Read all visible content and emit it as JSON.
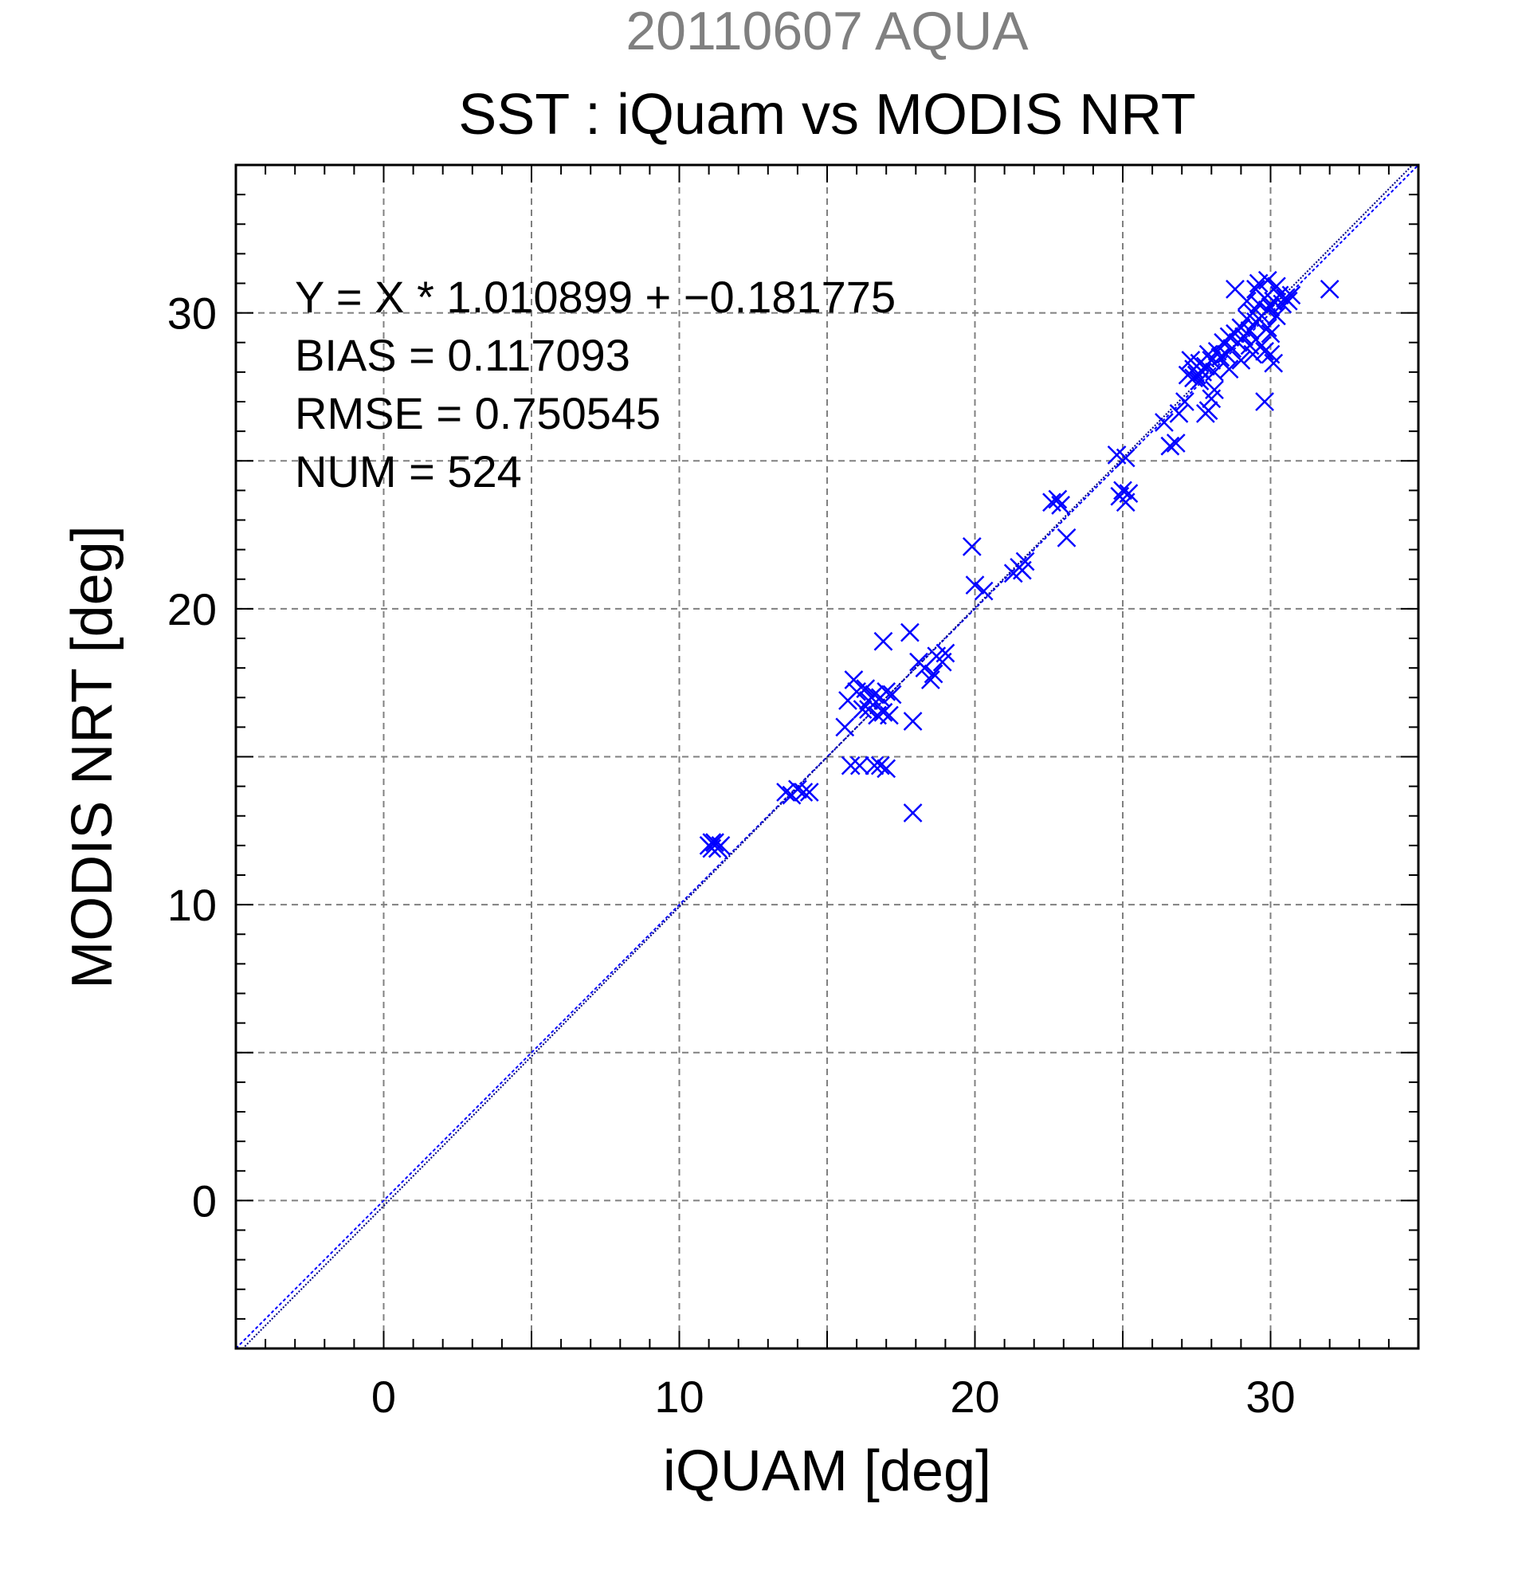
{
  "colors": {
    "marker": "#0000ff",
    "fit_line": "#000080",
    "identity_line": "#0000ff",
    "grid": "#808080",
    "supertitle": "#808080",
    "text": "#000000"
  },
  "chart_data": {
    "type": "scatter",
    "supertitle": "20110607 AQUA",
    "title": "SST : iQuam vs MODIS NRT",
    "xlabel": "iQUAM [deg]",
    "ylabel": "MODIS NRT [deg]",
    "xlim": [
      -5,
      35
    ],
    "ylim": [
      -5,
      35
    ],
    "xticks": [
      0,
      10,
      20,
      30
    ],
    "yticks": [
      0,
      10,
      20,
      30
    ],
    "grid": true,
    "marker": "x",
    "annotations": [
      "Y = X * 1.010899 + −0.181775",
      "BIAS = 0.117093",
      "RMSE = 0.750545",
      "NUM = 524"
    ],
    "fit": {
      "slope": 1.010899,
      "intercept": -0.181775
    },
    "reference_line": {
      "slope": 1,
      "intercept": 0
    },
    "series": [
      {
        "points": [
          [
            11.0,
            12.0
          ],
          [
            11.1,
            11.9
          ],
          [
            11.2,
            12.1
          ],
          [
            11.3,
            11.9
          ],
          [
            11.4,
            12.0
          ],
          [
            11.1,
            12.1
          ],
          [
            13.6,
            13.8
          ],
          [
            13.8,
            13.7
          ],
          [
            14.0,
            13.9
          ],
          [
            14.2,
            13.8
          ],
          [
            14.4,
            13.8
          ],
          [
            15.6,
            16.0
          ],
          [
            15.7,
            16.9
          ],
          [
            15.8,
            14.7
          ],
          [
            15.9,
            17.6
          ],
          [
            16.0,
            17.2
          ],
          [
            16.1,
            14.7
          ],
          [
            16.2,
            16.6
          ],
          [
            16.3,
            17.3
          ],
          [
            16.4,
            16.6
          ],
          [
            16.5,
            17.0
          ],
          [
            16.6,
            14.7
          ],
          [
            16.7,
            16.4
          ],
          [
            16.8,
            17.0
          ],
          [
            16.9,
            16.5
          ],
          [
            17.0,
            17.2
          ],
          [
            17.1,
            16.4
          ],
          [
            17.2,
            17.1
          ],
          [
            16.9,
            18.9
          ],
          [
            16.8,
            14.7
          ],
          [
            17.0,
            14.6
          ],
          [
            16.4,
            16.9
          ],
          [
            16.6,
            17.1
          ],
          [
            17.8,
            19.2
          ],
          [
            17.9,
            16.2
          ],
          [
            17.9,
            13.1
          ],
          [
            18.1,
            18.2
          ],
          [
            18.3,
            18.0
          ],
          [
            18.5,
            17.6
          ],
          [
            18.7,
            18.4
          ],
          [
            18.9,
            18.2
          ],
          [
            19.0,
            18.5
          ],
          [
            18.6,
            17.8
          ],
          [
            19.9,
            22.1
          ],
          [
            20.0,
            20.8
          ],
          [
            20.3,
            20.6
          ],
          [
            21.3,
            21.2
          ],
          [
            21.5,
            21.4
          ],
          [
            21.7,
            21.6
          ],
          [
            21.6,
            21.3
          ],
          [
            22.6,
            23.6
          ],
          [
            22.8,
            23.7
          ],
          [
            23.1,
            22.4
          ],
          [
            22.9,
            23.5
          ],
          [
            24.8,
            25.2
          ],
          [
            25.0,
            24.0
          ],
          [
            25.1,
            23.6
          ],
          [
            25.2,
            23.9
          ],
          [
            24.9,
            23.8
          ],
          [
            25.1,
            25.1
          ],
          [
            26.4,
            26.3
          ],
          [
            26.6,
            25.5
          ],
          [
            26.8,
            25.6
          ],
          [
            26.9,
            26.6
          ],
          [
            27.1,
            27.0
          ],
          [
            27.2,
            27.9
          ],
          [
            27.3,
            28.4
          ],
          [
            27.4,
            28.1
          ],
          [
            27.5,
            27.9
          ],
          [
            27.6,
            28.3
          ],
          [
            27.7,
            28.0
          ],
          [
            27.8,
            28.2
          ],
          [
            27.9,
            28.6
          ],
          [
            27.4,
            27.8
          ],
          [
            27.6,
            27.7
          ],
          [
            27.8,
            26.6
          ],
          [
            27.9,
            26.7
          ],
          [
            28.0,
            28.4
          ],
          [
            28.1,
            28.0
          ],
          [
            28.2,
            28.7
          ],
          [
            28.3,
            28.5
          ],
          [
            28.1,
            27.4
          ],
          [
            28.0,
            27.1
          ],
          [
            28.4,
            29.0
          ],
          [
            28.5,
            28.6
          ],
          [
            28.6,
            29.2
          ],
          [
            28.7,
            28.8
          ],
          [
            28.8,
            29.3
          ],
          [
            28.9,
            29.0
          ],
          [
            29.0,
            29.5
          ],
          [
            29.1,
            29.2
          ],
          [
            29.2,
            29.8
          ],
          [
            29.3,
            29.4
          ],
          [
            29.4,
            30.0
          ],
          [
            29.5,
            29.7
          ],
          [
            29.6,
            30.3
          ],
          [
            29.7,
            29.9
          ],
          [
            29.8,
            30.5
          ],
          [
            29.9,
            30.1
          ],
          [
            30.0,
            30.2
          ],
          [
            30.1,
            30.4
          ],
          [
            30.2,
            29.9
          ],
          [
            30.3,
            30.6
          ],
          [
            30.4,
            30.3
          ],
          [
            30.5,
            30.5
          ],
          [
            29.9,
            31.1
          ],
          [
            29.6,
            31.0
          ],
          [
            28.8,
            30.8
          ],
          [
            29.0,
            28.4
          ],
          [
            29.4,
            28.6
          ],
          [
            29.7,
            28.9
          ],
          [
            30.0,
            28.6
          ],
          [
            30.1,
            28.3
          ],
          [
            29.3,
            28.9
          ],
          [
            30.0,
            29.3
          ],
          [
            29.8,
            28.7
          ],
          [
            29.5,
            29.1
          ],
          [
            29.8,
            27.0
          ],
          [
            28.6,
            28.1
          ],
          [
            29.2,
            30.4
          ],
          [
            29.5,
            30.8
          ],
          [
            30.2,
            30.9
          ],
          [
            30.6,
            30.4
          ],
          [
            30.7,
            30.6
          ],
          [
            29.9,
            29.5
          ],
          [
            32.0,
            30.8
          ]
        ]
      }
    ]
  }
}
